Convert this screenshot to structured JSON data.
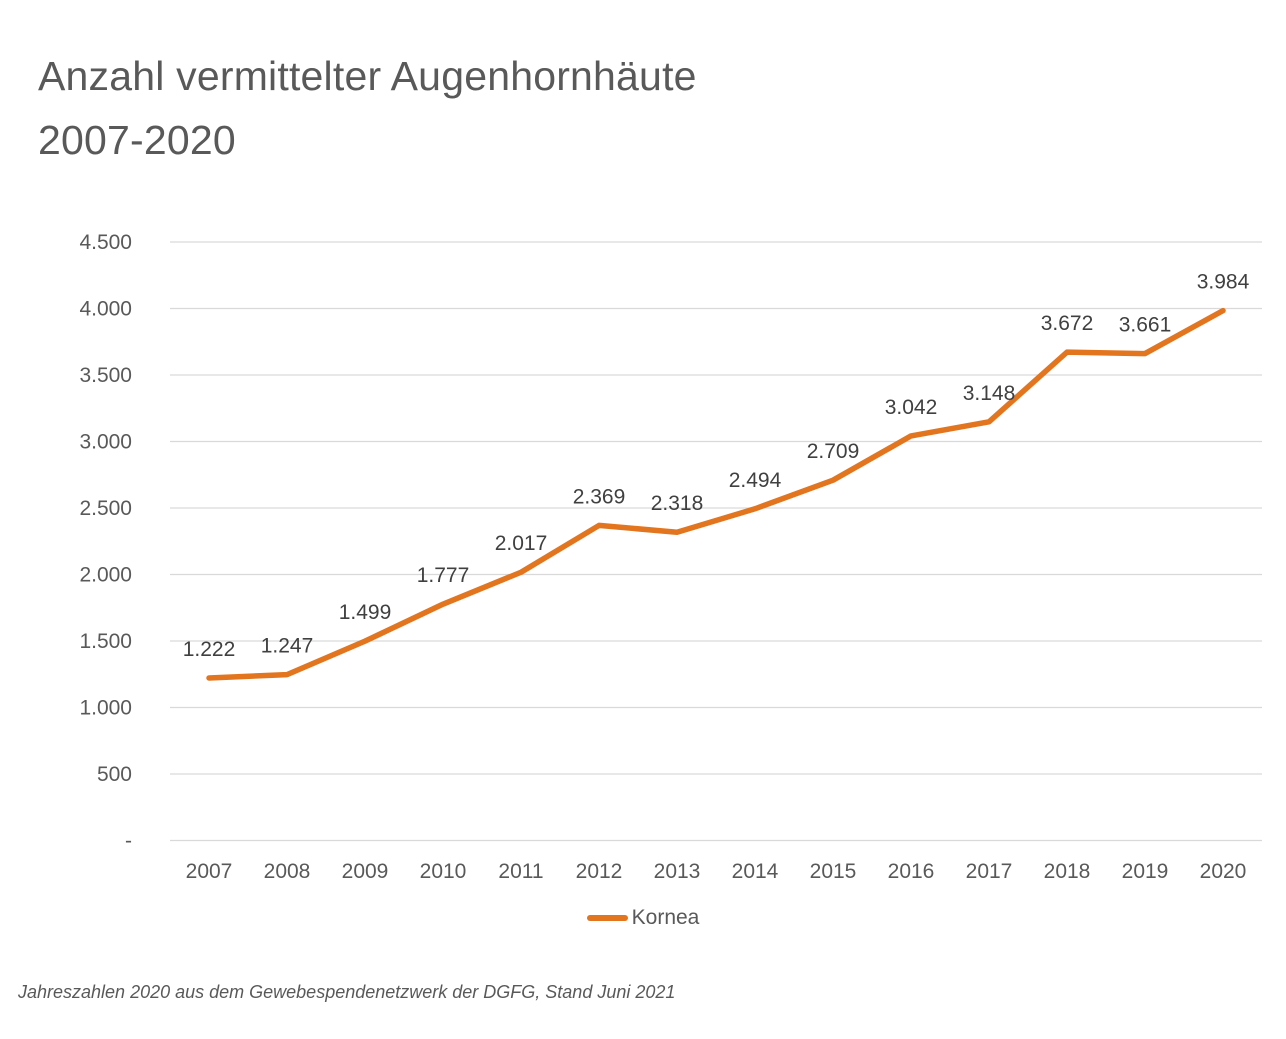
{
  "page": {
    "title_line1": "Anzahl vermittelter Augenhornhäute",
    "title_line2": "2007-2020",
    "footer": "Jahreszahlen 2020 aus dem Gewebespendenetzwerk der DGFG, Stand Juni 2021"
  },
  "legend": {
    "label": "Kornea",
    "swatch_color": "#E2751E"
  },
  "chart_data": {
    "type": "line",
    "title": "Anzahl vermittelter Augenhornhäute 2007-2020",
    "categories": [
      "2007",
      "2008",
      "2009",
      "2010",
      "2011",
      "2012",
      "2013",
      "2014",
      "2015",
      "2016",
      "2017",
      "2018",
      "2019",
      "2020"
    ],
    "series": [
      {
        "name": "Kornea",
        "color": "#E2751E",
        "values": [
          1222,
          1247,
          1499,
          1777,
          2017,
          2369,
          2318,
          2494,
          2709,
          3042,
          3148,
          3672,
          3661,
          3984
        ],
        "data_labels": [
          "1.222",
          "1.247",
          "1.499",
          "1.777",
          "2.017",
          "2.369",
          "2.318",
          "2.494",
          "2.709",
          "3.042",
          "3.148",
          "3.672",
          "3.661",
          "3.984"
        ]
      }
    ],
    "xlabel": "",
    "ylabel": "",
    "ylim": [
      0,
      4500
    ],
    "y_tick_interval": 500,
    "y_tick_labels": [
      "4.500",
      "4.000",
      "3.500",
      "3.000",
      "2.500",
      "2.000",
      "1.500",
      "1.000",
      "500",
      "-"
    ],
    "grid": true,
    "gridline_color": "#D9D9D9",
    "axis_label_color": "#595959",
    "data_label_color": "#404040",
    "legend_position": "bottom"
  }
}
